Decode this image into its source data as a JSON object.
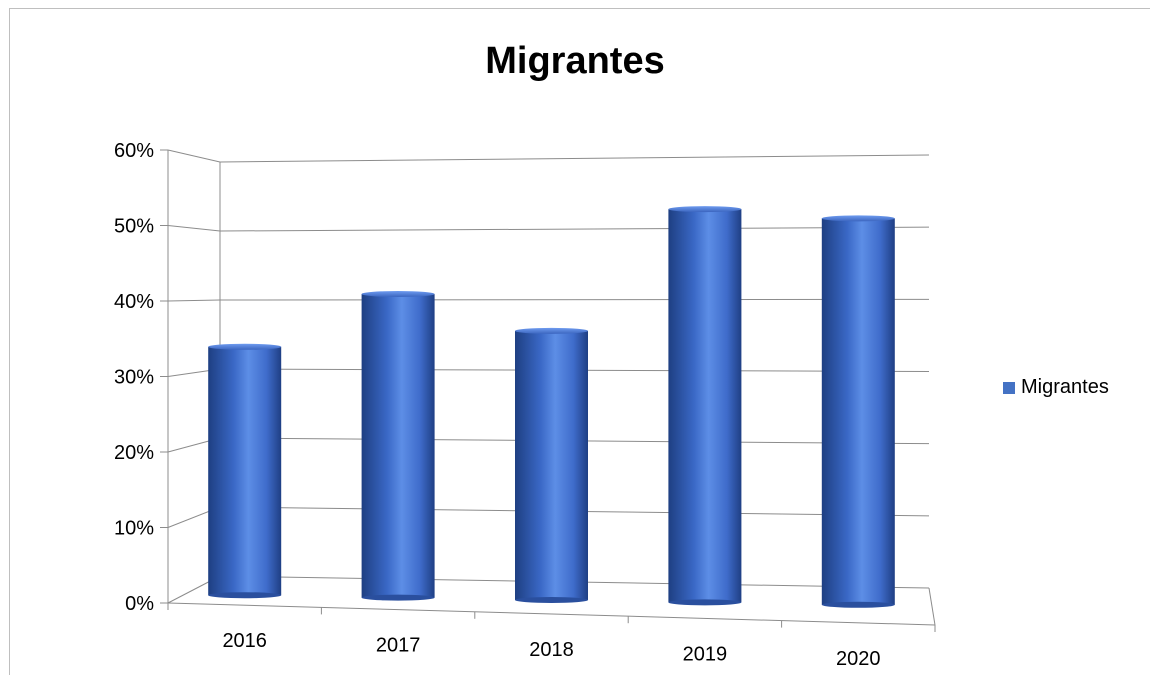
{
  "chart_data": {
    "type": "bar",
    "title": "Migrantes",
    "xlabel": "",
    "ylabel": "",
    "categories": [
      "2016",
      "2017",
      "2018",
      "2019",
      "2020"
    ],
    "series": [
      {
        "name": "Migrantes",
        "values": [
          0.36,
          0.44,
          0.39,
          0.57,
          0.56
        ]
      }
    ],
    "ylim": [
      0,
      0.6
    ],
    "y_ticks": [
      "0%",
      "10%",
      "20%",
      "30%",
      "40%",
      "50%",
      "60%"
    ],
    "grid": true,
    "legend_position": "right",
    "bar_color": "#4472c4"
  }
}
